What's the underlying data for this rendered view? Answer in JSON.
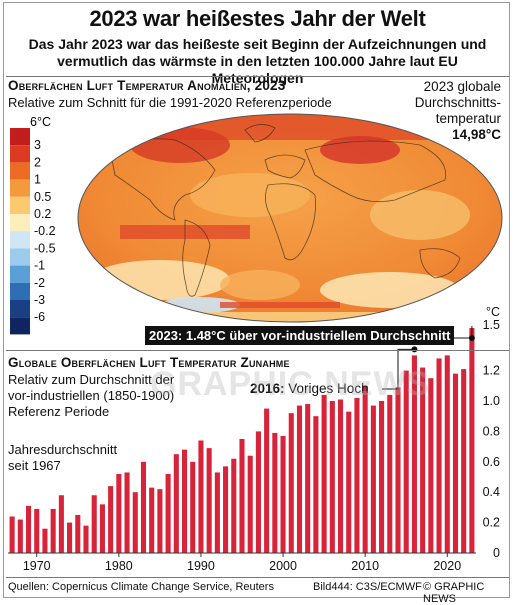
{
  "header": {
    "title": "2023 war heißestes Jahr der Welt",
    "subtitle_line1": "Das Jahr 2023 war das heißeste seit Beginn der Aufzeichnungen und",
    "subtitle_line2": "vermutlich das wärmste in den letzten 100.000 Jahre laut EU Meteorologen"
  },
  "map_section": {
    "heading": "Oberflächen Luft Temperatur Anomalien, 2023",
    "subheading": "Relative zum Schnitt für die 1991-2020 Referenzperiode",
    "avg_line1": "2023 globale",
    "avg_line2": "Durchschnitts-",
    "avg_line3": "temperatur",
    "avg_value": "14,98°C",
    "legend": {
      "unit_label": "6°C",
      "labels": [
        "3",
        "2",
        "1",
        "0.5",
        "0.2",
        "-0.2",
        "-0.5",
        "-1",
        "-2",
        "-3",
        "-6"
      ],
      "colors": [
        "#c21d1d",
        "#dc3a22",
        "#ec6b25",
        "#f59a3c",
        "#fbc96e",
        "#fdeebb",
        "#cfe6f4",
        "#9ccbeb",
        "#5a9fd6",
        "#2f6db4",
        "#1b3f85",
        "#0e2560"
      ]
    }
  },
  "chart_section": {
    "heading": "Globale Oberflächen Luft Temperatur Zunahme",
    "sub_line1": "Relativ zum Durchschnitt der",
    "sub_line2": "vor-industriellen (1850-1900)",
    "sub_line3": "Referenz Periode",
    "note_line1": "Jahresdurchschnitt",
    "note_line2": "seit 1967",
    "callout_2023": "2023: 1.48°C über vor-industriellem Durchschnitt",
    "callout_2016_bold": "2016:",
    "callout_2016_text": " Voriges Hoch"
  },
  "chart_data": {
    "type": "bar",
    "title": "Globale Oberflächen Luft Temperatur Zunahme",
    "ylabel": "°C",
    "bar_color": "#d8243a",
    "ylim": [
      0,
      1.5
    ],
    "yticks": [
      "0",
      "0.2",
      "0.4",
      "0.6",
      "0.8",
      "1.0",
      "1.2",
      "1.5"
    ],
    "ytick_values": [
      0,
      0.2,
      0.4,
      0.6,
      0.8,
      1.0,
      1.2,
      1.5
    ],
    "xticks": [
      "1970",
      "1980",
      "1990",
      "2000",
      "2010",
      "2020"
    ],
    "xtick_values": [
      1970,
      1980,
      1990,
      2000,
      2010,
      2020
    ],
    "x": [
      1967,
      1968,
      1969,
      1970,
      1971,
      1972,
      1973,
      1974,
      1975,
      1976,
      1977,
      1978,
      1979,
      1980,
      1981,
      1982,
      1983,
      1984,
      1985,
      1986,
      1987,
      1988,
      1989,
      1990,
      1991,
      1992,
      1993,
      1994,
      1995,
      1996,
      1997,
      1998,
      1999,
      2000,
      2001,
      2002,
      2003,
      2004,
      2005,
      2006,
      2007,
      2008,
      2009,
      2010,
      2011,
      2012,
      2013,
      2014,
      2015,
      2016,
      2017,
      2018,
      2019,
      2020,
      2021,
      2022,
      2023
    ],
    "values": [
      0.24,
      0.22,
      0.31,
      0.29,
      0.16,
      0.29,
      0.38,
      0.2,
      0.25,
      0.18,
      0.38,
      0.32,
      0.44,
      0.52,
      0.53,
      0.4,
      0.6,
      0.43,
      0.42,
      0.52,
      0.65,
      0.68,
      0.6,
      0.74,
      0.69,
      0.53,
      0.57,
      0.62,
      0.75,
      0.64,
      0.8,
      0.95,
      0.79,
      0.77,
      0.92,
      0.97,
      0.98,
      0.9,
      1.04,
      1.0,
      1.01,
      0.93,
      1.02,
      1.1,
      0.97,
      1.0,
      1.04,
      1.09,
      1.2,
      1.3,
      1.22,
      1.15,
      1.28,
      1.3,
      1.18,
      1.21,
      1.48
    ]
  },
  "footer": {
    "sources": "Quellen: Copernicus Climate Change Service, Reuters",
    "image_credit": "Bild444: C3S/ECMWF",
    "copyright": "© GRAPHIC NEWS"
  },
  "watermark": "GRAPHIC NEWS"
}
